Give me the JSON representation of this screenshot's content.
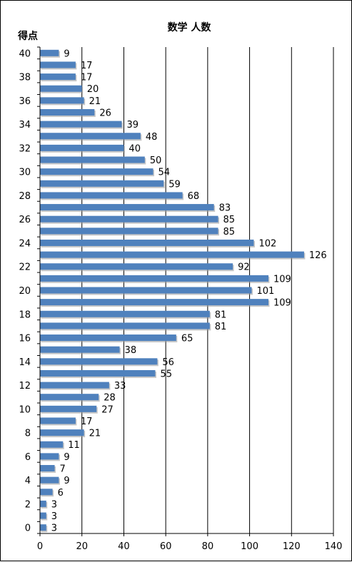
{
  "chart_data": {
    "type": "bar",
    "orientation": "horizontal",
    "title": "数学 人数",
    "xlabel": "",
    "ylabel": "得点",
    "xlim": [
      0,
      140
    ],
    "x_ticks": [
      0,
      20,
      40,
      60,
      80,
      100,
      120,
      140
    ],
    "y_ticks": [
      0,
      2,
      4,
      6,
      8,
      10,
      12,
      14,
      16,
      18,
      20,
      22,
      24,
      26,
      28,
      30,
      32,
      34,
      36,
      38,
      40
    ],
    "grid": "vertical",
    "colors": {
      "bar": "#4F81BD",
      "grid": "#000000"
    },
    "categories": [
      40,
      39,
      38,
      37,
      36,
      35,
      34,
      33,
      32,
      31,
      30,
      29,
      28,
      27,
      26,
      25,
      24,
      23,
      22,
      21,
      20,
      19,
      18,
      17,
      16,
      15,
      14,
      13,
      12,
      11,
      10,
      9,
      8,
      7,
      6,
      5,
      4,
      3,
      2,
      1,
      0
    ],
    "values": [
      9,
      17,
      17,
      20,
      21,
      26,
      39,
      48,
      40,
      50,
      54,
      59,
      68,
      83,
      85,
      85,
      102,
      126,
      92,
      109,
      101,
      109,
      81,
      81,
      65,
      38,
      56,
      55,
      33,
      28,
      27,
      17,
      21,
      11,
      9,
      7,
      9,
      6,
      3,
      3,
      3
    ]
  }
}
